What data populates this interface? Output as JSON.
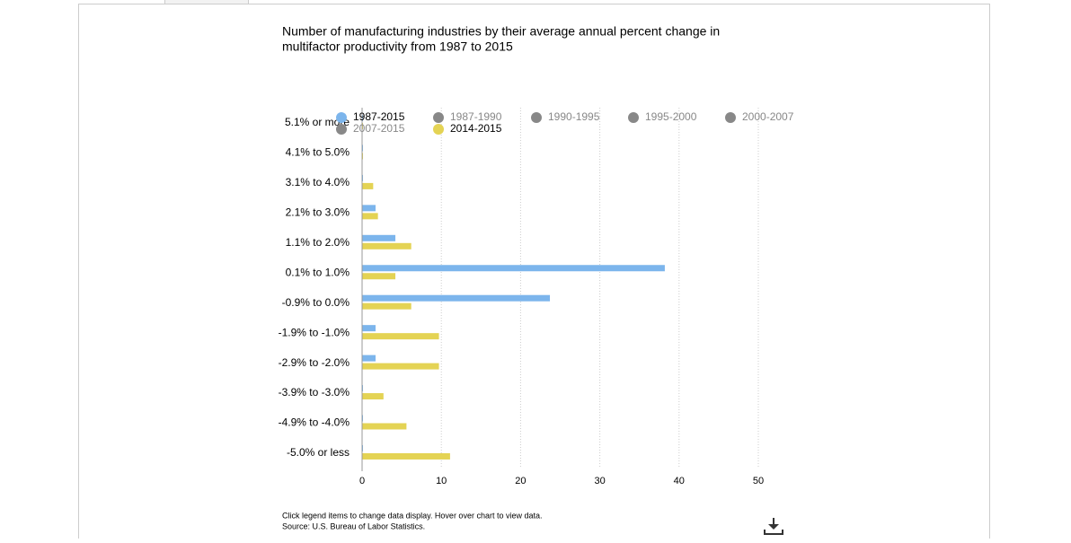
{
  "chart_data": {
    "type": "bar",
    "orientation": "horizontal",
    "title": "Number of manufacturing industries by their average annual percent change in",
    "title_line2": "multifactor productivity from 1987 to 2015",
    "categories": [
      "5.1% or more",
      "4.1% to 5.0%",
      "3.1% to 4.0%",
      "2.1% to 3.0%",
      "1.1% to 2.0%",
      "0.1% to 1.0%",
      "-0.9% to 0.0%",
      "-1.9% to -1.0%",
      "-2.9% to -2.0%",
      "-3.9% to -3.0%",
      "-4.9% to -4.0%",
      "-5.0% or less"
    ],
    "series": [
      {
        "name": "1987-2015",
        "color": "#7cb5ec",
        "visible": true,
        "values": [
          0,
          0,
          0,
          1.7,
          4.2,
          38.2,
          23.7,
          1.7,
          1.7,
          0,
          0,
          0
        ]
      },
      {
        "name": "1987-1990",
        "color": "#888888",
        "visible": false
      },
      {
        "name": "1990-1995",
        "color": "#888888",
        "visible": false
      },
      {
        "name": "1995-2000",
        "color": "#888888",
        "visible": false
      },
      {
        "name": "2000-2007",
        "color": "#888888",
        "visible": false
      },
      {
        "name": "2007-2015",
        "color": "#888888",
        "visible": false
      },
      {
        "name": "2014-2015",
        "color": "#e4d354",
        "visible": true,
        "values": [
          0,
          0,
          1.4,
          2.0,
          6.2,
          4.2,
          6.2,
          9.7,
          9.7,
          2.7,
          5.6,
          11.1
        ]
      }
    ],
    "xlim": [
      0,
      50
    ],
    "xticks": [
      0,
      10,
      20,
      30,
      40,
      50
    ],
    "grid": true,
    "note": "Click legend items to change data display. Hover over chart to view data.",
    "source": "Source: U.S. Bureau of Labor Statistics."
  }
}
